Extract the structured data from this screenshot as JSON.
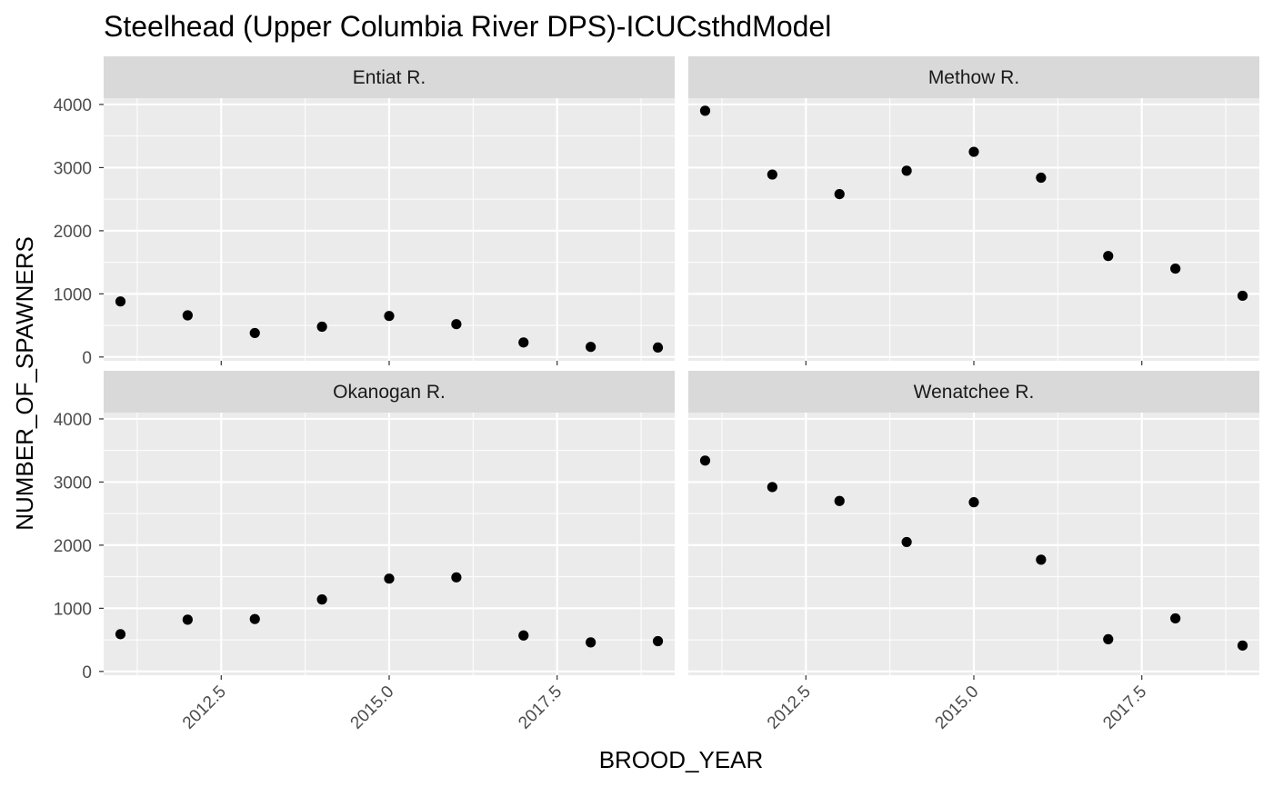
{
  "chart_data": {
    "type": "scatter",
    "title": "Steelhead (Upper Columbia River DPS)-ICUCsthdModel",
    "xlabel": "BROOD_YEAR",
    "ylabel": "NUMBER_OF_SPAWNERS",
    "xlim": [
      2010.75,
      2019.25
    ],
    "ylim": [
      -60,
      4100
    ],
    "x_ticks": [
      "2012.5",
      "2015.0",
      "2017.5"
    ],
    "y_ticks": [
      "0",
      "1000",
      "2000",
      "3000",
      "4000"
    ],
    "grid": true,
    "point_color": "#000000",
    "panel_background": "#ebebeb",
    "strip_background": "#d9d9d9",
    "facets": [
      {
        "name": "Entiat R.",
        "x": [
          2011,
          2012,
          2013,
          2014,
          2015,
          2016,
          2017,
          2018,
          2019
        ],
        "y": [
          880,
          660,
          380,
          480,
          650,
          520,
          230,
          160,
          150
        ]
      },
      {
        "name": "Methow R.",
        "x": [
          2011,
          2012,
          2013,
          2014,
          2015,
          2016,
          2017,
          2018,
          2019
        ],
        "y": [
          3900,
          2890,
          2580,
          2950,
          3250,
          2840,
          1600,
          1400,
          970
        ]
      },
      {
        "name": "Okanogan R.",
        "x": [
          2011,
          2012,
          2013,
          2014,
          2015,
          2016,
          2017,
          2018,
          2019
        ],
        "y": [
          590,
          820,
          830,
          1140,
          1470,
          1490,
          570,
          460,
          480
        ]
      },
      {
        "name": "Wenatchee R.",
        "x": [
          2011,
          2012,
          2013,
          2014,
          2015,
          2016,
          2017,
          2018,
          2019
        ],
        "y": [
          3340,
          2920,
          2700,
          2050,
          2680,
          1770,
          510,
          840,
          410
        ]
      }
    ]
  }
}
